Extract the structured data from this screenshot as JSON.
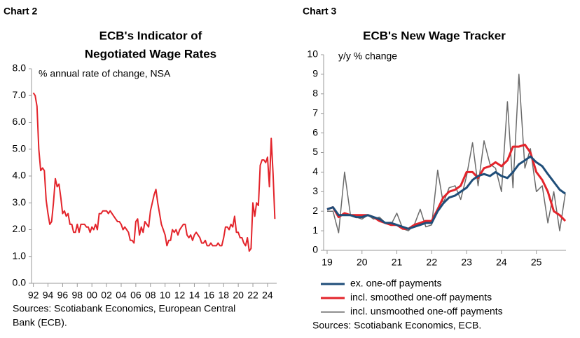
{
  "chart_data": [
    {
      "type": "line",
      "label": "Chart 2",
      "title": [
        "ECB's Indicator of",
        "Negotiated Wage Rates"
      ],
      "subtitle": "% annual rate of change, NSA",
      "source": [
        "Sources: Scotiabank Economics, European Central",
        "Bank (ECB)."
      ],
      "color": "#e3242b",
      "x": [
        1992,
        1992.25,
        1992.5,
        1992.75,
        1993,
        1993.25,
        1993.5,
        1993.75,
        1994,
        1994.25,
        1994.5,
        1994.75,
        1995,
        1995.25,
        1995.5,
        1995.75,
        1996,
        1996.25,
        1996.5,
        1996.75,
        1997,
        1997.25,
        1997.5,
        1997.75,
        1998,
        1998.25,
        1998.5,
        1998.75,
        1999,
        1999.25,
        1999.5,
        1999.75,
        2000,
        2000.25,
        2000.5,
        2000.75,
        2001,
        2001.25,
        2001.5,
        2001.75,
        2002,
        2002.25,
        2002.5,
        2002.75,
        2003,
        2003.25,
        2003.5,
        2003.75,
        2004,
        2004.25,
        2004.5,
        2004.75,
        2005,
        2005.25,
        2005.5,
        2005.75,
        2006,
        2006.25,
        2006.5,
        2006.75,
        2007,
        2007.25,
        2007.5,
        2007.75,
        2008,
        2008.25,
        2008.5,
        2008.75,
        2009,
        2009.25,
        2009.5,
        2009.75,
        2010,
        2010.25,
        2010.5,
        2010.75,
        2011,
        2011.25,
        2011.5,
        2011.75,
        2012,
        2012.25,
        2012.5,
        2012.75,
        2013,
        2013.25,
        2013.5,
        2013.75,
        2014,
        2014.25,
        2014.5,
        2014.75,
        2015,
        2015.25,
        2015.5,
        2015.75,
        2016,
        2016.25,
        2016.5,
        2016.75,
        2017,
        2017.25,
        2017.5,
        2017.75,
        2018,
        2018.25,
        2018.5,
        2018.75,
        2019,
        2019.25,
        2019.5,
        2019.75,
        2020,
        2020.25,
        2020.5,
        2020.75,
        2021,
        2021.25,
        2021.5,
        2021.75,
        2022,
        2022.25,
        2022.5,
        2022.75,
        2023,
        2023.25,
        2023.5,
        2023.75,
        2024,
        2024.25,
        2024.5,
        2024.75,
        2025
      ],
      "values": [
        7.1,
        7.0,
        6.6,
        5.0,
        4.2,
        4.3,
        4.2,
        3.1,
        2.6,
        2.2,
        2.3,
        3.0,
        3.9,
        3.6,
        3.7,
        3.2,
        2.6,
        2.7,
        2.5,
        2.6,
        2.2,
        2.2,
        1.9,
        1.9,
        2.2,
        1.9,
        2.2,
        2.2,
        2.2,
        2.1,
        2.1,
        1.9,
        2.1,
        2.0,
        2.2,
        2.0,
        2.6,
        2.6,
        2.7,
        2.7,
        2.7,
        2.6,
        2.7,
        2.6,
        2.5,
        2.4,
        2.3,
        2.3,
        2.2,
        2.0,
        2.1,
        2.0,
        1.9,
        1.6,
        1.6,
        1.5,
        2.3,
        2.4,
        1.8,
        2.1,
        1.9,
        2.3,
        2.2,
        2.1,
        2.7,
        3.0,
        3.3,
        3.5,
        3.0,
        2.6,
        2.2,
        2.0,
        1.8,
        1.4,
        1.6,
        1.6,
        2.0,
        1.9,
        2.0,
        1.8,
        2.0,
        2.1,
        2.2,
        2.2,
        1.8,
        1.7,
        1.8,
        1.6,
        1.8,
        1.9,
        1.8,
        1.7,
        1.5,
        1.5,
        1.6,
        1.4,
        1.4,
        1.5,
        1.4,
        1.4,
        1.4,
        1.5,
        1.4,
        1.4,
        1.7,
        2.1,
        2.1,
        2.0,
        2.2,
        2.1,
        2.5,
        1.9,
        1.9,
        1.7,
        1.7,
        1.5,
        1.4,
        1.7,
        1.2,
        1.3,
        3.0,
        2.5,
        3.0,
        2.9,
        4.4,
        4.6,
        4.6,
        4.5,
        4.7,
        3.6,
        5.4,
        4.1,
        2.4
      ],
      "xlim": [
        1991.75,
        2025.25
      ],
      "xticks": [
        {
          "value": 1992,
          "label": "92"
        },
        {
          "value": 1994,
          "label": "94"
        },
        {
          "value": 1996,
          "label": "96"
        },
        {
          "value": 1998,
          "label": "98"
        },
        {
          "value": 2000,
          "label": "00"
        },
        {
          "value": 2002,
          "label": "02"
        },
        {
          "value": 2004,
          "label": "04"
        },
        {
          "value": 2006,
          "label": "06"
        },
        {
          "value": 2008,
          "label": "08"
        },
        {
          "value": 2010,
          "label": "10"
        },
        {
          "value": 2012,
          "label": "12"
        },
        {
          "value": 2014,
          "label": "14"
        },
        {
          "value": 2016,
          "label": "16"
        },
        {
          "value": 2018,
          "label": "18"
        },
        {
          "value": 2020,
          "label": "20"
        },
        {
          "value": 2022,
          "label": "22"
        },
        {
          "value": 2024,
          "label": "24"
        }
      ],
      "ylim": [
        0,
        8
      ],
      "yticks": [
        {
          "value": 0,
          "label": "0.0"
        },
        {
          "value": 1,
          "label": "1.0"
        },
        {
          "value": 2,
          "label": "2.0"
        },
        {
          "value": 3,
          "label": "3.0"
        },
        {
          "value": 4,
          "label": "4.0"
        },
        {
          "value": 5,
          "label": "5.0"
        },
        {
          "value": 6,
          "label": "6.0"
        },
        {
          "value": 7,
          "label": "7.0"
        },
        {
          "value": 8,
          "label": "8.0"
        }
      ]
    },
    {
      "type": "line",
      "label": "Chart 3",
      "title": [
        "ECB's New Wage Tracker"
      ],
      "subtitle": "y/y % change",
      "source": [
        "Sources: Scotiabank Economics, ECB."
      ],
      "x": [
        2019,
        2019.17,
        2019.33,
        2019.5,
        2019.67,
        2019.83,
        2020,
        2020.17,
        2020.33,
        2020.5,
        2020.67,
        2020.83,
        2021,
        2021.17,
        2021.33,
        2021.5,
        2021.67,
        2021.83,
        2022,
        2022.17,
        2022.33,
        2022.5,
        2022.67,
        2022.83,
        2023,
        2023.17,
        2023.33,
        2023.5,
        2023.67,
        2023.83,
        2024,
        2024.17,
        2024.33,
        2024.5,
        2024.67,
        2024.83,
        2025,
        2025.17,
        2025.33,
        2025.5,
        2025.67,
        2025.83
      ],
      "series": [
        {
          "name": "incl. unsmoothed one-off payments",
          "color": "#6b6b6b",
          "width": 1.5,
          "values": [
            2.0,
            2.0,
            0.9,
            4.0,
            1.8,
            1.7,
            1.6,
            1.8,
            1.6,
            1.7,
            1.4,
            1.3,
            1.9,
            1.1,
            1.0,
            1.3,
            2.1,
            1.2,
            1.3,
            4.1,
            2.4,
            3.2,
            3.3,
            2.6,
            3.8,
            5.5,
            3.3,
            5.6,
            4.4,
            4.2,
            3.0,
            7.6,
            3.2,
            9.0,
            4.2,
            5.2,
            3.0,
            3.3,
            1.4,
            3.0,
            1.0,
            2.9
          ]
        },
        {
          "name": "incl. smoothed one-off payments",
          "color": "#e3242b",
          "width": 3,
          "values": [
            2.1,
            2.2,
            1.7,
            1.9,
            1.8,
            1.8,
            1.8,
            1.8,
            1.7,
            1.5,
            1.4,
            1.3,
            1.3,
            1.1,
            1.1,
            1.3,
            1.4,
            1.5,
            1.5,
            2.1,
            2.7,
            3.0,
            3.1,
            3.3,
            4.0,
            4.0,
            3.7,
            4.2,
            4.3,
            4.5,
            4.3,
            4.6,
            5.3,
            5.3,
            5.4,
            5.0,
            4.0,
            3.6,
            3.0,
            2.0,
            1.8,
            1.5
          ]
        },
        {
          "name": "ex. one-off payments",
          "color": "#1f4e79",
          "width": 3,
          "values": [
            2.1,
            2.2,
            1.8,
            1.8,
            1.8,
            1.7,
            1.7,
            1.8,
            1.7,
            1.6,
            1.4,
            1.4,
            1.3,
            1.2,
            1.1,
            1.2,
            1.3,
            1.4,
            1.4,
            2.0,
            2.4,
            2.7,
            2.8,
            3.0,
            3.2,
            3.6,
            3.8,
            3.9,
            3.8,
            4.0,
            3.8,
            3.7,
            4.0,
            4.4,
            4.6,
            4.8,
            4.5,
            4.3,
            3.9,
            3.5,
            3.1,
            2.9
          ]
        }
      ],
      "legend_order": [
        2,
        1,
        0
      ],
      "xlim": [
        2018.9,
        2025.85
      ],
      "xticks": [
        {
          "value": 2019,
          "label": "19"
        },
        {
          "value": 2020,
          "label": "20"
        },
        {
          "value": 2021,
          "label": "21"
        },
        {
          "value": 2022,
          "label": "22"
        },
        {
          "value": 2023,
          "label": "23"
        },
        {
          "value": 2024,
          "label": "24"
        },
        {
          "value": 2025,
          "label": "25"
        }
      ],
      "ylim": [
        0,
        10
      ],
      "yticks": [
        0,
        1,
        2,
        3,
        4,
        5,
        6,
        7,
        8,
        9,
        10
      ]
    }
  ]
}
